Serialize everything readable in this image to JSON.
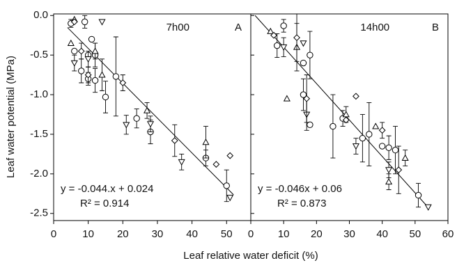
{
  "ylabel": "Leaf water potential (MPa)",
  "xlabel": "Leaf relative water deficit (%)",
  "chart_data": [
    {
      "type": "scatter",
      "title": "7h00",
      "panel": "A",
      "equation": "y = -0.044.x + 0.024",
      "r2": "R² = 0.914",
      "color": "#000000",
      "xlim": [
        0,
        57
      ],
      "xticks": [
        0,
        10,
        20,
        30,
        40,
        50
      ],
      "ylim": [
        -2.59,
        0.02
      ],
      "yticks": [
        -2.5,
        {
          "value": -2,
          "label": "-2.0"
        },
        -1.5,
        {
          "value": -1,
          "label": "-1.0"
        },
        -0.5,
        {
          "value": 0,
          "label": "0.0"
        }
      ],
      "fit": {
        "slope": -0.044,
        "intercept": 0.024,
        "x": [
          4,
          52
        ]
      },
      "series": [
        {
          "marker": "circle",
          "x": [
            5,
            9,
            6,
            10,
            11,
            12,
            8,
            10,
            12,
            15,
            18,
            24,
            28,
            44,
            50
          ],
          "y": [
            -0.1,
            -0.08,
            -0.45,
            -0.5,
            -0.3,
            -0.5,
            -0.7,
            -0.8,
            -0.82,
            -1.03,
            -0.77,
            -1.3,
            -1.47,
            -1.8,
            -2.15
          ],
          "err": [
            0.05,
            0.08,
            null,
            null,
            null,
            0.15,
            0.15,
            0.08,
            0.15,
            0.2,
            0.5,
            0.12,
            0.15,
            0.1,
            0.2
          ]
        },
        {
          "marker": "triangle-up",
          "x": [
            6,
            5,
            12,
            14,
            27,
            44
          ],
          "y": [
            -0.05,
            -0.35,
            -0.45,
            -0.75,
            -1.2,
            -1.6
          ],
          "err": [
            null,
            null,
            0.1,
            0.2,
            0.1,
            0.2
          ]
        },
        {
          "marker": "triangle-down",
          "x": [
            14,
            6,
            10,
            21,
            28,
            37,
            51
          ],
          "y": [
            -0.08,
            -0.6,
            -0.55,
            -1.38,
            -1.37,
            -1.85,
            -2.3
          ],
          "err": [
            null,
            0.1,
            0.1,
            0.12,
            0.1,
            0.1,
            null
          ]
        },
        {
          "marker": "diamond",
          "x": [
            6,
            8,
            10,
            20,
            35,
            47,
            51
          ],
          "y": [
            -0.08,
            -0.45,
            -0.75,
            -0.85,
            -1.58,
            -1.88,
            -1.77
          ],
          "err": [
            null,
            0.1,
            0.1,
            0.1,
            0.2,
            null,
            null
          ]
        }
      ]
    },
    {
      "type": "scatter",
      "title": "14h00",
      "panel": "B",
      "equation": "y = -0.046x + 0.06",
      "r2": "R² = 0.873",
      "color": "#000000",
      "xlim": [
        0,
        60
      ],
      "xticks": [
        0,
        10,
        20,
        30,
        40,
        50,
        60
      ],
      "ylim": [
        -2.59,
        0.02
      ],
      "yticks": [
        -2.5,
        {
          "value": -2,
          "label": "-2.0"
        },
        -1.5,
        {
          "value": -1,
          "label": "-1.0"
        },
        -0.5,
        {
          "value": 0,
          "label": "0.0"
        }
      ],
      "fit": {
        "slope": -0.046,
        "intercept": 0.06,
        "x": [
          1.3,
          54
        ]
      },
      "series": [
        {
          "marker": "circle",
          "x": [
            10,
            8,
            16,
            18,
            16,
            18,
            25,
            28,
            34,
            36,
            40,
            42,
            44,
            51
          ],
          "y": [
            -0.13,
            -0.38,
            -0.6,
            -0.5,
            -1.0,
            -1.38,
            -1.4,
            -1.3,
            -1.55,
            -1.5,
            -1.65,
            -1.67,
            -1.7,
            -2.27
          ],
          "err": [
            0.08,
            0.15,
            null,
            0.3,
            0.2,
            null,
            0.4,
            0.1,
            0.3,
            0.4,
            null,
            0.15,
            0.3,
            0.15
          ]
        },
        {
          "marker": "triangle-up",
          "x": [
            6,
            14,
            11,
            29,
            38,
            42,
            47
          ],
          "y": [
            -0.2,
            -0.4,
            -1.05,
            -1.25,
            -1.4,
            -2.1,
            -1.8
          ],
          "err": [
            null,
            0.3,
            null,
            0.1,
            null,
            0.1,
            0.1
          ]
        },
        {
          "marker": "triangle-down",
          "x": [
            10,
            16,
            17,
            32,
            42,
            54
          ],
          "y": [
            -0.4,
            -0.35,
            -1.25,
            -1.65,
            -1.95,
            -2.42
          ],
          "err": [
            0.12,
            null,
            0.2,
            0.1,
            0.1,
            null
          ]
        },
        {
          "marker": "diamond",
          "x": [
            7,
            14,
            17,
            29,
            32,
            40,
            45
          ],
          "y": [
            -0.25,
            -0.28,
            -1.05,
            -1.32,
            -1.02,
            -1.45,
            -1.95
          ],
          "err": [
            null,
            0.3,
            0.3,
            null,
            null,
            0.1,
            0.3
          ]
        }
      ]
    }
  ]
}
